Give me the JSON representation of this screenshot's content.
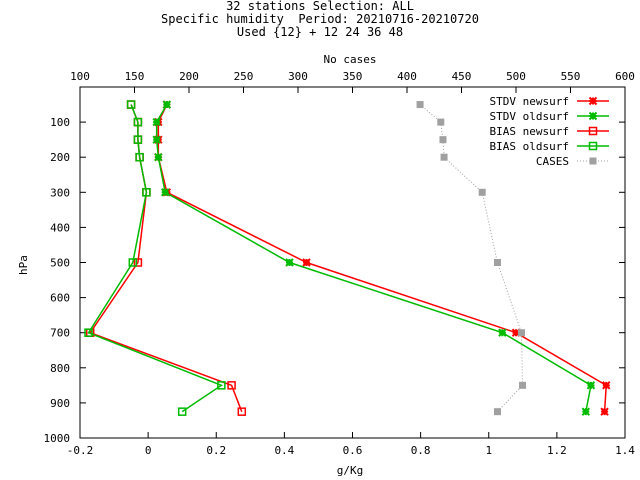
{
  "chart_data": {
    "type": "line",
    "title_lines": [
      "32 stations Selection: ALL",
      "Specific humidity  Period: 20210716-20210720",
      "Used {12} + 12 24 36 48"
    ],
    "xlabel": "g/Kg",
    "ylabel": "hPa",
    "x2label": "No cases",
    "xlim": [
      -0.2,
      1.4
    ],
    "x2lim": [
      100,
      600
    ],
    "ylim": [
      1000,
      0
    ],
    "xticks": [
      -0.2,
      0,
      0.2,
      0.4,
      0.6,
      0.8,
      1,
      1.2,
      1.4
    ],
    "xtick_labels": [
      "-0.2",
      "0",
      "0.2",
      "0.4",
      "0.6",
      "0.8",
      "1",
      "1.2",
      "1.4"
    ],
    "x2ticks": [
      100,
      150,
      200,
      250,
      300,
      350,
      400,
      450,
      500,
      550,
      600
    ],
    "x2tick_labels": [
      "100",
      "150",
      "200",
      "250",
      "300",
      "350",
      "400",
      "450",
      "500",
      "550",
      "600"
    ],
    "yticks": [
      100,
      200,
      300,
      400,
      500,
      600,
      700,
      800,
      900,
      1000
    ],
    "ytick_labels": [
      "100",
      "200",
      "300",
      "400",
      "500",
      "600",
      "700",
      "800",
      "900",
      "1000"
    ],
    "legend_position": "top-right",
    "grid": false,
    "series": [
      {
        "name": "STDV newsurf",
        "color": "#ff0000",
        "marker": "x",
        "axis": "bottom",
        "x": [
          0.055,
          0.03,
          0.03,
          0.03,
          0.055,
          0.465,
          1.08,
          1.345,
          1.34
        ],
        "y": [
          50,
          100,
          150,
          200,
          300,
          500,
          700,
          850,
          925
        ]
      },
      {
        "name": "STDV oldsurf",
        "color": "#00bb00",
        "marker": "x",
        "axis": "bottom",
        "x": [
          0.055,
          0.025,
          0.025,
          0.03,
          0.05,
          0.415,
          1.04,
          1.3,
          1.285
        ],
        "y": [
          50,
          100,
          150,
          200,
          300,
          500,
          700,
          850,
          925
        ]
      },
      {
        "name": "BIAS newsurf",
        "color": "#ff0000",
        "marker": "square",
        "axis": "bottom",
        "x": [
          -0.05,
          -0.03,
          -0.03,
          -0.025,
          -0.005,
          -0.03,
          -0.17,
          0.245,
          0.275
        ],
        "y": [
          50,
          100,
          150,
          200,
          300,
          500,
          700,
          850,
          925
        ]
      },
      {
        "name": "BIAS oldsurf",
        "color": "#00bb00",
        "marker": "square",
        "axis": "bottom",
        "x": [
          -0.05,
          -0.03,
          -0.03,
          -0.025,
          -0.005,
          -0.045,
          -0.175,
          0.215,
          0.1
        ],
        "y": [
          50,
          100,
          150,
          200,
          300,
          500,
          700,
          850,
          925
        ]
      },
      {
        "name": "CASES",
        "color": "#a0a0a0",
        "marker": "filled-square",
        "axis": "top",
        "dotted": true,
        "x": [
          412,
          431,
          433,
          434,
          469,
          483,
          505,
          506,
          483
        ],
        "y": [
          50,
          100,
          150,
          200,
          300,
          500,
          700,
          850,
          925
        ]
      }
    ]
  }
}
